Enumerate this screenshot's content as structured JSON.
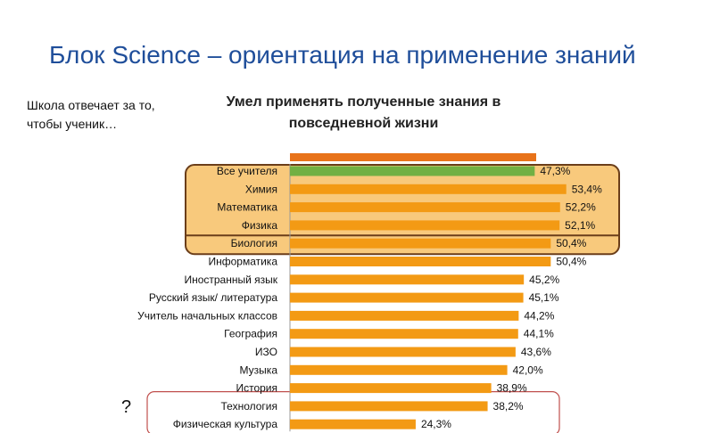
{
  "slide": {
    "title": "Блок Science – ориентация на применение знаний",
    "side_note": "Школа отвечает за то, чтобы ученик…",
    "question_mark": "?"
  },
  "colors": {
    "title_blue": "#1f4e9a",
    "bar_orange": "#f39a14",
    "top_bar_orange": "#e8731a",
    "highlight_green": "#72b043",
    "science_box_fill": "#f8c97c",
    "science_box_border": "#6b3e1a",
    "low_box_border": "#c0504d"
  },
  "chart_data": {
    "type": "bar",
    "orientation": "horizontal",
    "title": "Умел применять полученные знания в повседневной жизни",
    "xlim": [
      0,
      100
    ],
    "top_bar_label": "",
    "categories": [
      "Все учителя",
      "Химия",
      "Математика",
      "Физика",
      "Биология",
      "Информатика",
      "Иностранный язык",
      "Русский язык/ литература",
      "Учитель начальных классов",
      "География",
      "ИЗО",
      "Музыка",
      "История",
      "Технология",
      "Физическая культура"
    ],
    "values": [
      47.3,
      53.4,
      52.2,
      52.1,
      50.4,
      50.4,
      45.2,
      45.1,
      44.2,
      44.1,
      43.6,
      42.0,
      38.9,
      38.2,
      24.3
    ],
    "data_labels": [
      "47,3%",
      "53,4%",
      "52,2%",
      "52,1%",
      "50,4%",
      "50,4%",
      "45,2%",
      "45,1%",
      "44,2%",
      "44,1%",
      "43,6%",
      "42,0%",
      "38,9%",
      "38,2%",
      "24,3%"
    ],
    "highlight": {
      "science_group": [
        "Химия",
        "Математика",
        "Физика",
        "Биология"
      ],
      "all_teachers": "Все учителя",
      "low_group": [
        "История",
        "Технология",
        "Физическая культура"
      ]
    },
    "legend": "none",
    "grid": false
  }
}
